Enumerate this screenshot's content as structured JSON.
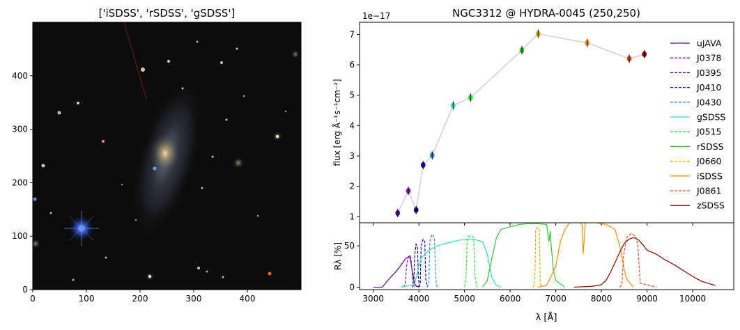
{
  "image_panel": {
    "title": "['iSDSS', 'rSDSS', 'gSDSS']",
    "xlim": [
      0,
      500
    ],
    "ylim": [
      0,
      500
    ],
    "xticks": [
      "0",
      "100",
      "200",
      "300",
      "400"
    ],
    "yticks": [
      "0",
      "100",
      "200",
      "300",
      "400"
    ]
  },
  "chart_data": [
    {
      "type": "scatter",
      "title": "NGC3312 @ HYDRA-0045 (250,250)",
      "ylabel": "flux [erg Å⁻¹s⁻¹cm⁻²]",
      "offset_text": "1e−17",
      "xlim": [
        2700,
        10900
      ],
      "ylim": [
        0.8,
        7.4
      ],
      "yticks": [
        1,
        2,
        3,
        4,
        5,
        6,
        7
      ],
      "grid": false,
      "legend_position": "right",
      "connector_color": "#d3d3d3",
      "series": [
        {
          "name": "uJAVA",
          "wavelength": 3536,
          "flux": 1.12,
          "color": "#5a0a8c",
          "style": "solid"
        },
        {
          "name": "J0378",
          "wavelength": 3770,
          "flux": 1.85,
          "color": "#8a1aa8",
          "style": "dashed"
        },
        {
          "name": "J0395",
          "wavelength": 3940,
          "flux": 1.22,
          "color": "#120a6e",
          "style": "dashed"
        },
        {
          "name": "J0410",
          "wavelength": 4094,
          "flux": 2.7,
          "color": "#1010d8",
          "style": "dashed"
        },
        {
          "name": "J0430",
          "wavelength": 4292,
          "flux": 3.02,
          "color": "#3c8ce6",
          "style": "dashed"
        },
        {
          "name": "gSDSS",
          "wavelength": 4751,
          "flux": 4.66,
          "color": "#30e0c8",
          "style": "solid"
        },
        {
          "name": "J0515",
          "wavelength": 5133,
          "flux": 4.92,
          "color": "#30e830",
          "style": "dashed"
        },
        {
          "name": "rSDSS",
          "wavelength": 6258,
          "flux": 6.48,
          "color": "#30c830",
          "style": "solid"
        },
        {
          "name": "J0660",
          "wavelength": 6614,
          "flux": 7.02,
          "color": "#d8b000",
          "style": "dashed"
        },
        {
          "name": "iSDSS",
          "wavelength": 7690,
          "flux": 6.72,
          "color": "#ff8c00",
          "style": "solid"
        },
        {
          "name": "J0861",
          "wavelength": 8611,
          "flux": 6.2,
          "color": "#e8501e",
          "style": "dashed"
        },
        {
          "name": "zSDSS",
          "wavelength": 8941,
          "flux": 6.35,
          "color": "#8b0000",
          "style": "solid"
        }
      ]
    },
    {
      "type": "line",
      "xlabel": "λ [Å]",
      "ylabel": "Rλ [%]",
      "xlim": [
        2700,
        10900
      ],
      "ylim": [
        -3,
        78
      ],
      "xticks": [
        3000,
        4000,
        5000,
        6000,
        7000,
        8000,
        9000,
        10000
      ],
      "yticks": [
        0,
        50
      ],
      "filters": [
        {
          "name": "uJAVA",
          "wl": [
            3000,
            3200,
            3300,
            3500,
            3600,
            3700,
            3800,
            3850,
            3900,
            3950,
            4000
          ],
          "r": [
            0,
            0,
            7,
            19,
            26,
            34,
            38,
            22,
            5,
            1,
            0
          ]
        },
        {
          "name": "J0378",
          "wl": [
            3660,
            3700,
            3730,
            3760,
            3800,
            3830,
            3870,
            3900
          ],
          "r": [
            0,
            3,
            25,
            35,
            38,
            34,
            5,
            0
          ]
        },
        {
          "name": "J0395",
          "wl": [
            3860,
            3890,
            3910,
            3940,
            3970,
            3990,
            4020
          ],
          "r": [
            0,
            5,
            40,
            52,
            48,
            10,
            0
          ]
        },
        {
          "name": "J0410",
          "wl": [
            3990,
            4030,
            4050,
            4090,
            4130,
            4150,
            4190
          ],
          "r": [
            0,
            5,
            50,
            58,
            55,
            10,
            0
          ]
        },
        {
          "name": "J0430",
          "wl": [
            4180,
            4220,
            4240,
            4290,
            4340,
            4370,
            4400
          ],
          "r": [
            0,
            5,
            55,
            64,
            60,
            10,
            0
          ]
        },
        {
          "name": "gSDSS",
          "wl": [
            3600,
            3900,
            4050,
            4200,
            4400,
            4600,
            4800,
            5000,
            5200,
            5400,
            5500,
            5600,
            5700,
            5800
          ],
          "r": [
            0,
            3,
            35,
            44,
            50,
            53,
            56,
            58,
            58,
            55,
            40,
            12,
            2,
            0
          ]
        },
        {
          "name": "J0515",
          "wl": [
            5000,
            5030,
            5060,
            5100,
            5150,
            5200,
            5230,
            5280
          ],
          "r": [
            0,
            8,
            58,
            62,
            62,
            60,
            12,
            0
          ]
        },
        {
          "name": "rSDSS",
          "wl": [
            5400,
            5500,
            5600,
            5700,
            5800,
            6000,
            6200,
            6400,
            6600,
            6800,
            6850,
            6880,
            6900,
            6950,
            7000,
            7200
          ],
          "r": [
            0,
            8,
            35,
            60,
            70,
            73,
            76,
            77,
            77,
            76,
            55,
            68,
            50,
            20,
            8,
            0
          ]
        },
        {
          "name": "J0660",
          "wl": [
            6500,
            6540,
            6560,
            6600,
            6640,
            6660,
            6700
          ],
          "r": [
            0,
            4,
            70,
            72,
            70,
            4,
            0
          ]
        },
        {
          "name": "iSDSS",
          "wl": [
            6600,
            6800,
            7000,
            7100,
            7200,
            7300,
            7400,
            7500,
            7580,
            7600,
            7650,
            7700,
            7900,
            8100,
            8300,
            8400,
            8500,
            8550,
            8700
          ],
          "r": [
            0,
            2,
            25,
            55,
            70,
            78,
            80,
            80,
            75,
            40,
            78,
            79,
            78,
            76,
            70,
            50,
            22,
            10,
            0
          ]
        },
        {
          "name": "J0861",
          "wl": [
            8400,
            8450,
            8480,
            8550,
            8650,
            8750,
            8800,
            8850,
            9200
          ],
          "r": [
            0,
            3,
            35,
            60,
            65,
            62,
            50,
            5,
            0
          ]
        },
        {
          "name": "zSDSS",
          "wl": [
            7400,
            7800,
            8000,
            8100,
            8200,
            8300,
            8400,
            8500,
            8600,
            8700,
            8800,
            8900,
            9000,
            9200,
            9400,
            9600,
            9800,
            10000,
            10200,
            10500
          ],
          "r": [
            0,
            1,
            3,
            8,
            18,
            30,
            42,
            53,
            58,
            60,
            58,
            52,
            45,
            40,
            33,
            27,
            20,
            13,
            7,
            2
          ]
        }
      ]
    }
  ]
}
